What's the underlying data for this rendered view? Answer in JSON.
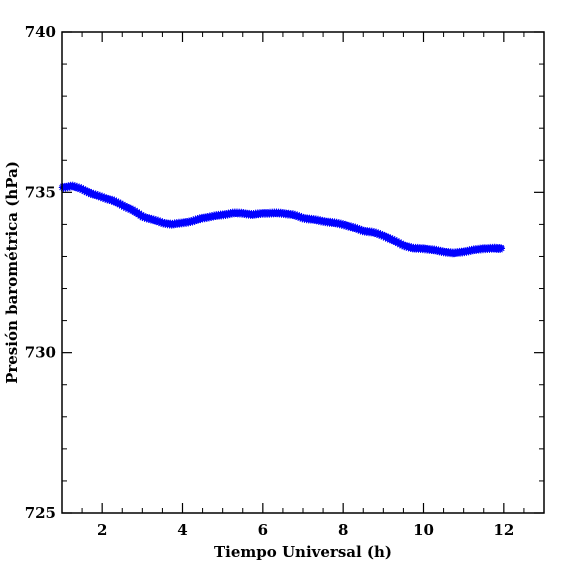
{
  "chart_data": {
    "type": "scatter",
    "title": "",
    "xlabel": "Tiempo Universal (h)",
    "ylabel": "Presión barométrica (hPa)",
    "xlim": [
      1,
      13
    ],
    "ylim": [
      725,
      740
    ],
    "x_ticks": [
      2,
      4,
      6,
      8,
      10,
      12
    ],
    "x_tick_labels": [
      "2",
      "4",
      "6",
      "8",
      "10",
      "12"
    ],
    "y_ticks": [
      725,
      730,
      735,
      740
    ],
    "y_tick_labels": [
      "725",
      "730",
      "735",
      "740"
    ],
    "x_minor_step": 0.5,
    "y_minor_step": 1,
    "grid": false,
    "marker": "asterisk",
    "series": [
      {
        "color": "#0000ff",
        "points": [
          [
            1.0,
            735.15
          ],
          [
            1.25,
            735.2
          ],
          [
            1.5,
            735.1
          ],
          [
            1.75,
            734.95
          ],
          [
            2.0,
            734.85
          ],
          [
            2.25,
            734.75
          ],
          [
            2.5,
            734.6
          ],
          [
            2.75,
            734.45
          ],
          [
            3.0,
            734.25
          ],
          [
            3.25,
            734.15
          ],
          [
            3.5,
            734.05
          ],
          [
            3.75,
            734.0
          ],
          [
            4.0,
            734.05
          ],
          [
            4.25,
            734.1
          ],
          [
            4.5,
            734.2
          ],
          [
            4.75,
            734.25
          ],
          [
            5.0,
            734.3
          ],
          [
            5.25,
            734.35
          ],
          [
            5.5,
            734.35
          ],
          [
            5.75,
            734.3
          ],
          [
            6.0,
            734.35
          ],
          [
            6.25,
            734.35
          ],
          [
            6.5,
            734.35
          ],
          [
            6.75,
            734.3
          ],
          [
            7.0,
            734.2
          ],
          [
            7.25,
            734.15
          ],
          [
            7.5,
            734.1
          ],
          [
            7.75,
            734.05
          ],
          [
            8.0,
            734.0
          ],
          [
            8.25,
            733.9
          ],
          [
            8.5,
            733.8
          ],
          [
            8.75,
            733.75
          ],
          [
            9.0,
            733.65
          ],
          [
            9.25,
            733.5
          ],
          [
            9.5,
            733.35
          ],
          [
            9.75,
            733.25
          ],
          [
            10.0,
            733.25
          ],
          [
            10.25,
            733.2
          ],
          [
            10.5,
            733.15
          ],
          [
            10.75,
            733.1
          ],
          [
            11.0,
            733.15
          ],
          [
            11.25,
            733.2
          ],
          [
            11.5,
            733.25
          ],
          [
            11.75,
            733.25
          ],
          [
            11.95,
            733.25
          ]
        ]
      }
    ]
  }
}
